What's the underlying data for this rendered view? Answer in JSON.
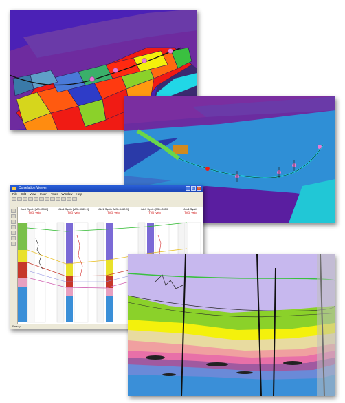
{
  "app": {
    "window_title": "Correlation Viewer",
    "menu": [
      "File",
      "Edit",
      "View",
      "Insert",
      "Tools",
      "Window",
      "Help"
    ],
    "status": "Ready"
  },
  "tracks": [
    {
      "name": "Jdc1 Synth [MD=2850]",
      "sub": "TVD_velo"
    },
    {
      "name": "Jdc1 Synth [MD=3085.9]",
      "sub": "TVD_velo"
    },
    {
      "name": "Jdc1 Synth [MD=3460.9]",
      "sub": "TVD_velo"
    },
    {
      "name": "Jdc1 Synth [MD=2850]",
      "sub": "TVD_velo"
    },
    {
      "name": "Jdc1 Synth",
      "sub": "TVD_velo"
    }
  ],
  "colors": {
    "sky_purple": "#4b21b6",
    "surface_purple": "#7a2ea0",
    "grid_red": "#f01b14",
    "water_blue": "#2f8fd6",
    "cyan_horizon": "#21d7e6",
    "section_lavender": "#c7b8ee",
    "yellow_layer": "#f4f10c",
    "green_layer": "#8bd12a",
    "marker_pink": "#e87ad6"
  }
}
